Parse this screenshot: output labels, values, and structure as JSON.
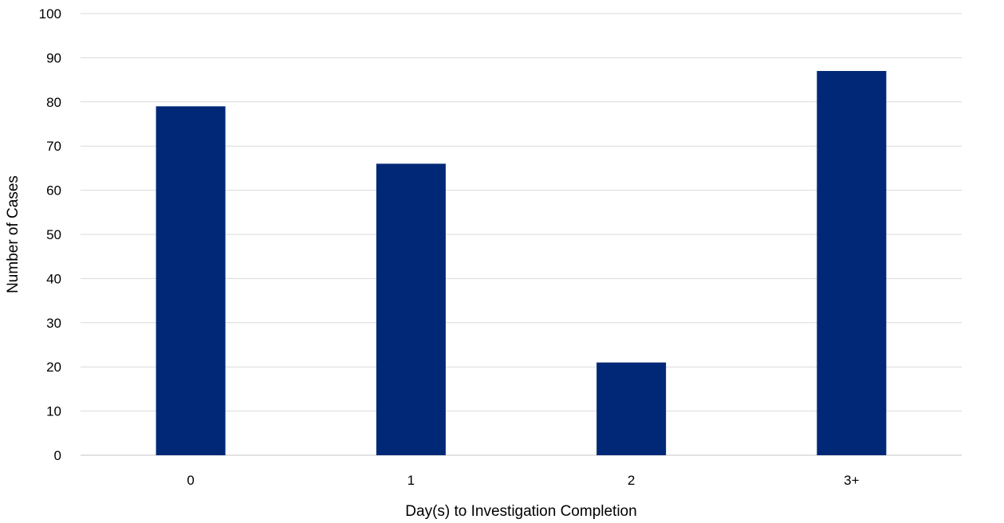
{
  "chart_data": {
    "type": "bar",
    "title": "",
    "xlabel": "Day(s) to Investigation Completion",
    "ylabel": "Number of Cases",
    "categories": [
      "0",
      "1",
      "2",
      "3+"
    ],
    "values": [
      79,
      66,
      21,
      87
    ],
    "ylim": [
      0,
      100
    ],
    "yticks": [
      0,
      10,
      20,
      30,
      40,
      50,
      60,
      70,
      80,
      90,
      100
    ],
    "grid": true,
    "legend": "none",
    "bar_color": "#002876",
    "grid_color": "#d9d9d9"
  }
}
